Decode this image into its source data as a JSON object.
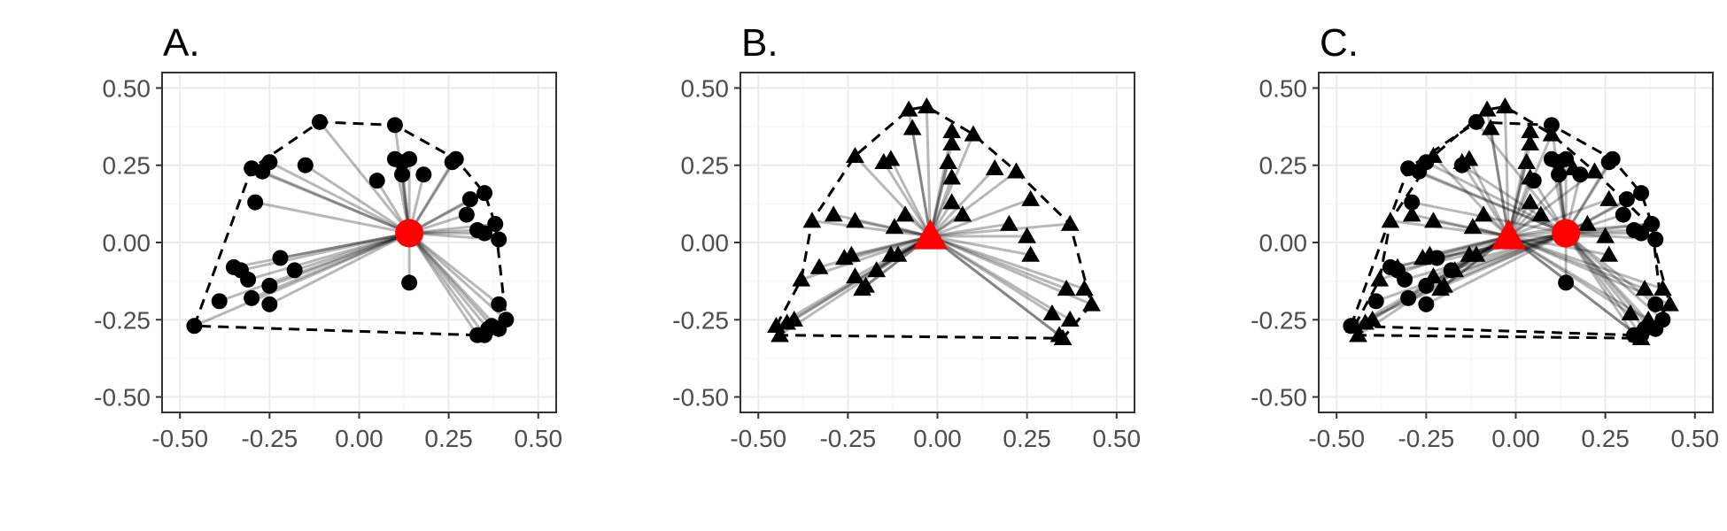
{
  "colors": {
    "points": "#000000",
    "centroid": "#ff0000",
    "grid": "#ebebeb",
    "axis_text": "#4d4d4d"
  },
  "chart_data": [
    {
      "panel": "A.",
      "title": "A.",
      "type": "scatter",
      "style": "spider plot with convex hull (dashed)",
      "xlim": [
        -0.55,
        0.55
      ],
      "ylim": [
        -0.55,
        0.55
      ],
      "x_ticks": [
        "-0.50",
        "-0.25",
        "0.00",
        "0.25",
        "0.50"
      ],
      "y_ticks": [
        "0.50",
        "0.25",
        "0.00",
        "-0.25",
        "-0.50"
      ],
      "grid": true,
      "series": [
        {
          "shape": "circle",
          "centroid": [
            0.14,
            0.03
          ],
          "points": [
            [
              -0.46,
              -0.27
            ],
            [
              -0.39,
              -0.19
            ],
            [
              -0.35,
              -0.08
            ],
            [
              -0.33,
              -0.09
            ],
            [
              -0.31,
              -0.12
            ],
            [
              -0.3,
              -0.18
            ],
            [
              -0.25,
              -0.14
            ],
            [
              -0.25,
              -0.2
            ],
            [
              -0.22,
              -0.05
            ],
            [
              -0.18,
              -0.09
            ],
            [
              -0.3,
              0.24
            ],
            [
              -0.27,
              0.23
            ],
            [
              -0.25,
              0.26
            ],
            [
              -0.29,
              0.13
            ],
            [
              -0.15,
              0.25
            ],
            [
              -0.11,
              0.39
            ],
            [
              0.1,
              0.38
            ],
            [
              0.05,
              0.2
            ],
            [
              0.1,
              0.27
            ],
            [
              0.12,
              0.26
            ],
            [
              0.14,
              0.27
            ],
            [
              0.12,
              0.22
            ],
            [
              0.18,
              0.22
            ],
            [
              0.26,
              0.26
            ],
            [
              0.27,
              0.27
            ],
            [
              0.31,
              0.14
            ],
            [
              0.35,
              0.16
            ],
            [
              0.3,
              0.09
            ],
            [
              0.35,
              0.03
            ],
            [
              0.33,
              0.04
            ],
            [
              0.38,
              0.06
            ],
            [
              0.39,
              0.01
            ],
            [
              0.14,
              -0.13
            ],
            [
              0.39,
              -0.2
            ],
            [
              0.41,
              -0.25
            ],
            [
              0.39,
              -0.28
            ],
            [
              0.37,
              -0.27
            ],
            [
              0.36,
              -0.28
            ],
            [
              0.35,
              -0.3
            ],
            [
              0.33,
              -0.3
            ]
          ],
          "hull": [
            [
              -0.46,
              -0.27
            ],
            [
              -0.3,
              0.24
            ],
            [
              -0.11,
              0.39
            ],
            [
              0.1,
              0.38
            ],
            [
              0.27,
              0.27
            ],
            [
              0.35,
              0.16
            ],
            [
              0.38,
              0.06
            ],
            [
              0.41,
              -0.25
            ],
            [
              0.33,
              -0.3
            ]
          ]
        }
      ]
    },
    {
      "panel": "B.",
      "title": "B.",
      "type": "scatter",
      "style": "spider plot with convex hull (dashed)",
      "xlim": [
        -0.55,
        0.55
      ],
      "ylim": [
        -0.55,
        0.55
      ],
      "x_ticks": [
        "-0.50",
        "-0.25",
        "0.00",
        "0.25",
        "0.50"
      ],
      "y_ticks": [
        "0.50",
        "0.25",
        "0.00",
        "-0.25",
        "-0.50"
      ],
      "grid": true,
      "series": [
        {
          "shape": "triangle",
          "centroid": [
            -0.02,
            0.02
          ],
          "points": [
            [
              -0.45,
              -0.27
            ],
            [
              -0.44,
              -0.3
            ],
            [
              -0.42,
              -0.26
            ],
            [
              -0.4,
              -0.25
            ],
            [
              -0.38,
              -0.12
            ],
            [
              -0.33,
              -0.08
            ],
            [
              -0.35,
              0.07
            ],
            [
              -0.29,
              0.09
            ],
            [
              -0.26,
              -0.05
            ],
            [
              -0.24,
              -0.04
            ],
            [
              -0.23,
              -0.11
            ],
            [
              -0.21,
              -0.15
            ],
            [
              -0.2,
              -0.14
            ],
            [
              -0.23,
              0.07
            ],
            [
              -0.17,
              -0.09
            ],
            [
              -0.13,
              -0.04
            ],
            [
              -0.11,
              -0.04
            ],
            [
              -0.12,
              0.05
            ],
            [
              -0.09,
              0.09
            ],
            [
              -0.23,
              0.28
            ],
            [
              -0.15,
              0.26
            ],
            [
              -0.13,
              0.27
            ],
            [
              -0.08,
              0.43
            ],
            [
              -0.03,
              0.44
            ],
            [
              -0.07,
              0.37
            ],
            [
              0.04,
              0.36
            ],
            [
              0.1,
              0.35
            ],
            [
              0.04,
              0.32
            ],
            [
              0.03,
              0.26
            ],
            [
              0.04,
              0.21
            ],
            [
              0.04,
              0.13
            ],
            [
              0.07,
              0.09
            ],
            [
              0.16,
              0.24
            ],
            [
              0.22,
              0.23
            ],
            [
              0.26,
              0.14
            ],
            [
              0.2,
              0.06
            ],
            [
              0.25,
              0.02
            ],
            [
              0.26,
              -0.04
            ],
            [
              0.37,
              0.06
            ],
            [
              0.36,
              -0.15
            ],
            [
              0.41,
              -0.15
            ],
            [
              0.43,
              -0.2
            ],
            [
              0.32,
              -0.23
            ],
            [
              0.37,
              -0.25
            ],
            [
              0.34,
              -0.3
            ],
            [
              0.35,
              -0.31
            ]
          ],
          "hull": [
            [
              -0.45,
              -0.27
            ],
            [
              -0.38,
              -0.12
            ],
            [
              -0.35,
              0.07
            ],
            [
              -0.23,
              0.28
            ],
            [
              -0.08,
              0.43
            ],
            [
              -0.03,
              0.44
            ],
            [
              0.1,
              0.35
            ],
            [
              0.22,
              0.23
            ],
            [
              0.37,
              0.06
            ],
            [
              0.43,
              -0.2
            ],
            [
              0.35,
              -0.31
            ],
            [
              -0.44,
              -0.3
            ]
          ]
        }
      ]
    },
    {
      "panel": "C.",
      "title": "C.",
      "type": "scatter",
      "style": "spider plot with convex hulls (dashed), panels A and B overlaid",
      "xlim": [
        -0.55,
        0.55
      ],
      "ylim": [
        -0.55,
        0.55
      ],
      "x_ticks": [
        "-0.50",
        "-0.25",
        "0.00",
        "0.25",
        "0.50"
      ],
      "y_ticks": [
        "0.50",
        "0.25",
        "0.00",
        "-0.25",
        "-0.50"
      ],
      "grid": true,
      "overlay_of": [
        "A.",
        "B."
      ]
    }
  ]
}
